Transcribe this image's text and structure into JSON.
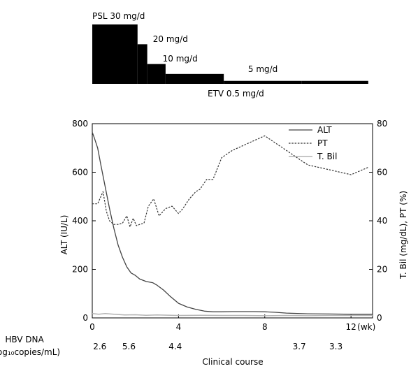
{
  "dosing": {
    "psl": {
      "labels": [
        "PSL 30 mg/d",
        "20 mg/d",
        "10 mg/d",
        "5 mg/d"
      ],
      "doses_mg_per_day": [
        30,
        20,
        10,
        5,
        1.5
      ],
      "start_weeks": [
        0,
        2.1,
        2.55,
        3.4,
        6.1
      ],
      "end_week": 9.7,
      "scale_max_mg": 30
    },
    "etv": {
      "label": "ETV 0.5 mg/d",
      "start_week": 9.7,
      "end_week": 12.8
    }
  },
  "chart_data": {
    "type": "line",
    "xlabel": "Clinical course",
    "x_unit_label": "(wk)",
    "ylabel": "ALT (IU/L)",
    "y2label": "T. Bil (mg/dL), PT (%)",
    "xlim": [
      0,
      13
    ],
    "ylim": [
      0,
      800
    ],
    "y2lim": [
      0,
      80
    ],
    "x_ticks": [
      0,
      4,
      8,
      12
    ],
    "x_tick_labels": [
      "0",
      "4",
      "8",
      "12"
    ],
    "y_ticks": [
      0,
      200,
      400,
      600,
      800
    ],
    "y2_ticks": [
      0,
      20,
      40,
      60,
      80
    ],
    "legend_position": "top-right",
    "series": [
      {
        "name": "ALT",
        "axis": "left",
        "style": "solid",
        "color": "#444444",
        "x": [
          0,
          0.1,
          0.25,
          0.4,
          0.6,
          0.8,
          1.0,
          1.2,
          1.4,
          1.6,
          1.8,
          2.0,
          2.2,
          2.5,
          2.8,
          3.0,
          3.3,
          3.6,
          4.0,
          4.4,
          4.8,
          5.2,
          5.6,
          6.0,
          6.5,
          7.0,
          7.5,
          8.0,
          8.5,
          9.0,
          9.5,
          10.0,
          11.0,
          12.0,
          13.0
        ],
        "y": [
          765,
          740,
          700,
          630,
          540,
          450,
          370,
          300,
          250,
          210,
          185,
          175,
          160,
          150,
          145,
          135,
          115,
          90,
          60,
          45,
          35,
          28,
          25,
          25,
          26,
          26,
          26,
          25,
          23,
          20,
          18,
          17,
          16,
          15,
          15
        ]
      },
      {
        "name": "PT",
        "axis": "right",
        "style": "dotted",
        "color": "#333333",
        "x": [
          0,
          0.25,
          0.5,
          0.65,
          0.8,
          1.0,
          1.2,
          1.4,
          1.6,
          1.75,
          1.9,
          2.05,
          2.2,
          2.4,
          2.6,
          2.85,
          3.1,
          3.4,
          3.7,
          4.0,
          4.2,
          4.5,
          4.8,
          5.0,
          5.3,
          5.6,
          6.0,
          6.5,
          7.0,
          7.5,
          8.0,
          8.5,
          9.0,
          9.5,
          10.0,
          11.0,
          12.0,
          12.8
        ],
        "y": [
          47,
          47,
          52,
          44,
          40,
          38.5,
          38.5,
          39,
          42,
          37.5,
          41,
          38,
          38.5,
          39,
          46,
          49,
          42,
          45,
          46,
          43,
          45,
          49,
          52,
          53,
          57,
          57,
          66,
          69,
          71,
          73,
          75,
          72,
          69,
          66,
          63,
          61,
          59,
          62
        ]
      },
      {
        "name": "T. Bil",
        "axis": "right",
        "style": "solid",
        "color": "#b3b3b3",
        "x": [
          0,
          0.3,
          0.6,
          1.0,
          1.5,
          2.0,
          2.5,
          3.0,
          4.0,
          5.0,
          6.0,
          7.0,
          8.0,
          9.0,
          10.0,
          11.0,
          12.0,
          13.0
        ],
        "y": [
          1.8,
          1.5,
          1.8,
          1.5,
          1.2,
          1.3,
          1.1,
          1.2,
          1.0,
          1.1,
          1.0,
          1.0,
          0.9,
          1.0,
          0.9,
          1.0,
          1.0,
          1.0
        ]
      }
    ],
    "hbv_dna": {
      "label_line1": "HBV DNA",
      "label_line2": "(log₁₀copies/mL)",
      "x": [
        0.35,
        1.7,
        3.85,
        9.6,
        11.3
      ],
      "values": [
        "2.6",
        "5.6",
        "4.4",
        "3.7",
        "3.3"
      ]
    }
  }
}
